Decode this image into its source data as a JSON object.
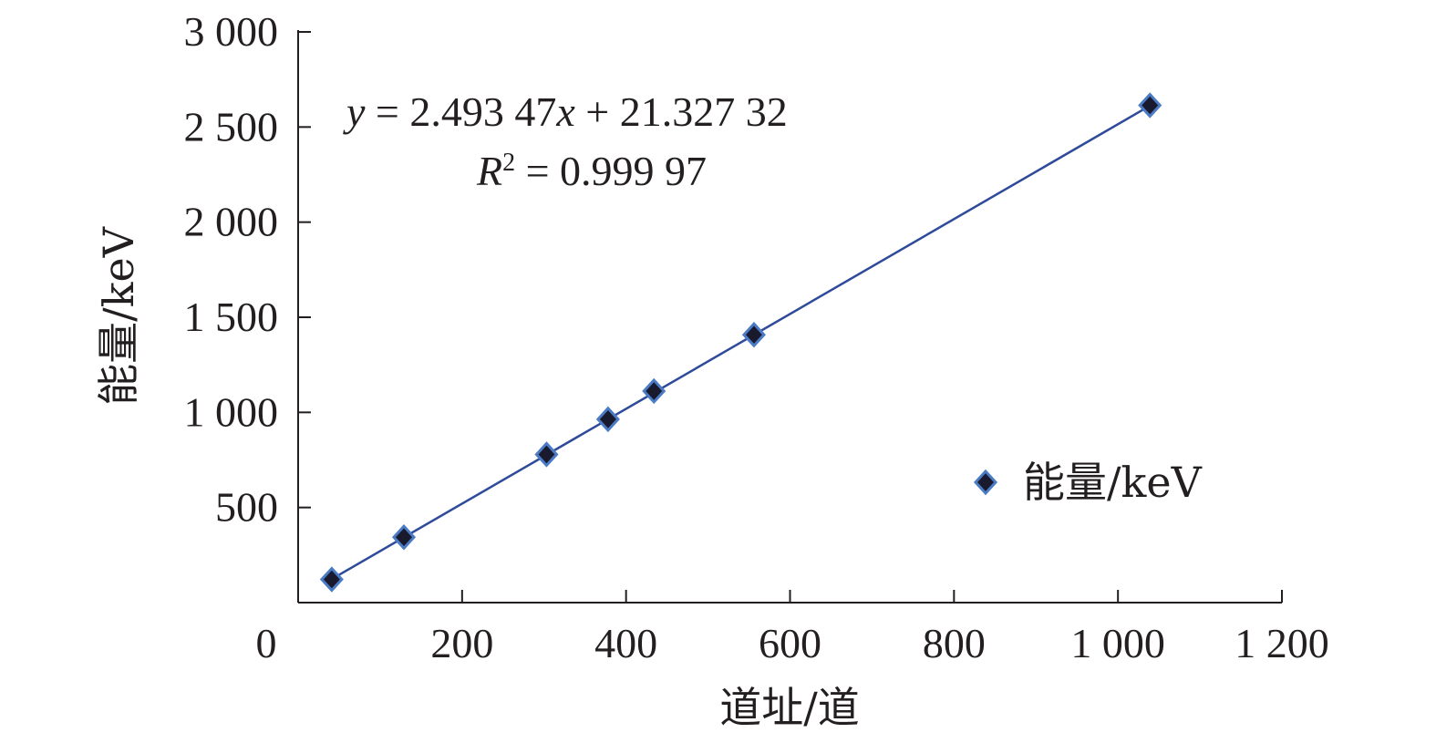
{
  "chart_data": {
    "type": "scatter",
    "xlabel": "道址/道",
    "ylabel": "能量/keV",
    "xlim": [
      0,
      1200
    ],
    "ylim": [
      0,
      3000
    ],
    "x_ticks": [
      0,
      200,
      400,
      600,
      800,
      1000,
      1200
    ],
    "y_ticks": [
      500,
      1000,
      1500,
      2000,
      2500,
      3000
    ],
    "x_tick_labels": [
      "0",
      "200",
      "400",
      "600",
      "800",
      "1 000",
      "1 200"
    ],
    "y_tick_labels": [
      "500",
      "1 000",
      "1 500",
      "2 000",
      "2 500",
      "3 000"
    ],
    "series": [
      {
        "name": "能量/keV",
        "marker": "diamond",
        "marker_color": "#1a1a2e",
        "marker_edge": "#4a7bc4",
        "points": [
          {
            "x": 41,
            "y": 122
          },
          {
            "x": 129,
            "y": 344
          },
          {
            "x": 303,
            "y": 779
          },
          {
            "x": 378,
            "y": 964
          },
          {
            "x": 434,
            "y": 1112
          },
          {
            "x": 556,
            "y": 1408
          },
          {
            "x": 1039,
            "y": 2614
          }
        ]
      }
    ],
    "trendline": {
      "slope": 2.49347,
      "intercept": 21.32732,
      "color": "#2e4a9a",
      "x_range": [
        41,
        1039
      ]
    },
    "annotation": {
      "equation_var_y": "y",
      "equation_body": " = 2.493 47",
      "equation_var_x": "x",
      "equation_tail": " + 21.327 32",
      "r2_var": "R",
      "r2_sup": "2",
      "r2_value": " = 0.999 97"
    },
    "legend": {
      "position": "right",
      "label": "能量/keV"
    },
    "grid": false
  }
}
